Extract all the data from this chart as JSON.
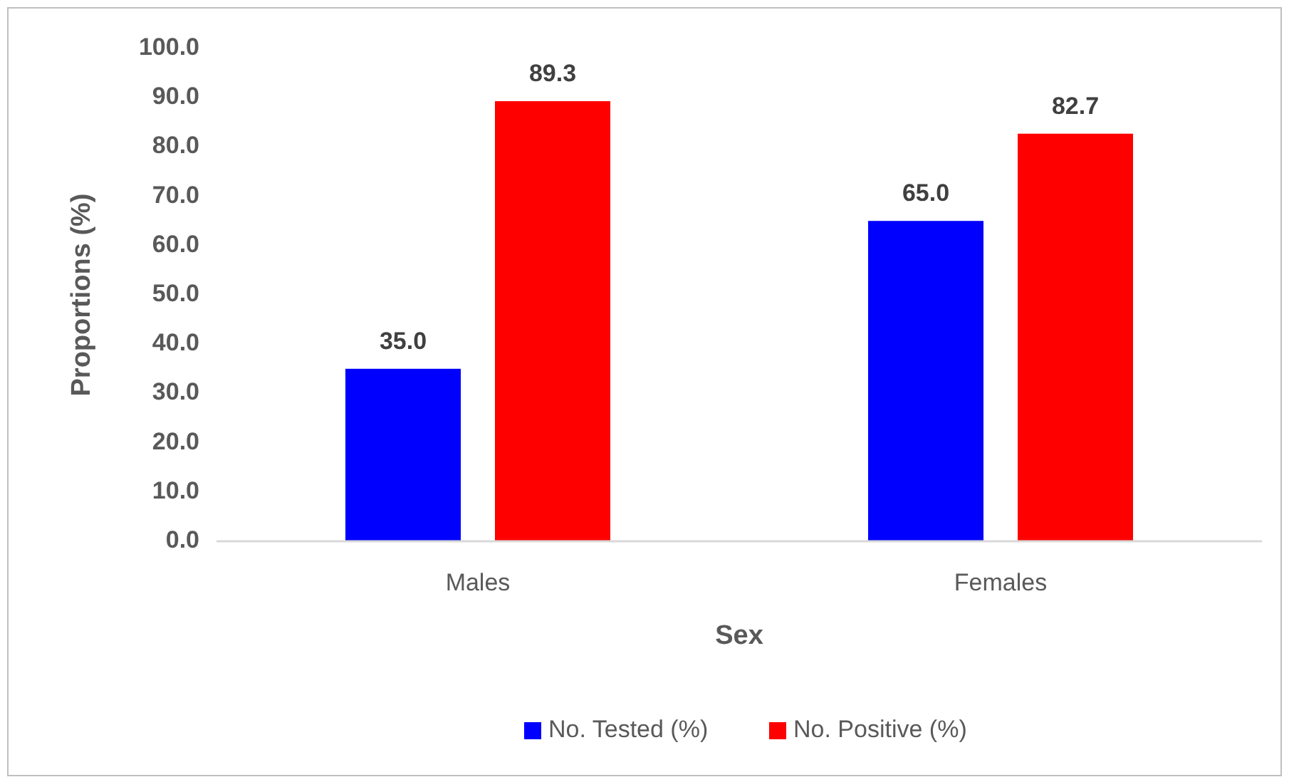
{
  "chart_data": {
    "type": "bar",
    "xlabel": "Sex",
    "ylabel": "Proportions (%)",
    "categories": [
      "Males",
      "Females"
    ],
    "series": [
      {
        "name": "No. Tested (%)",
        "color": "#0000ff",
        "values": [
          35.0,
          65.0
        ],
        "value_labels": [
          "35.0",
          "65.0"
        ]
      },
      {
        "name": "No. Positive (%)",
        "color": "#ff0000",
        "values": [
          89.3,
          82.7
        ],
        "value_labels": [
          "89.3",
          "82.7"
        ]
      }
    ],
    "ylim": [
      0,
      100
    ],
    "yticks": [
      {
        "value": 0,
        "label": "0.0"
      },
      {
        "value": 10,
        "label": "10.0"
      },
      {
        "value": 20,
        "label": "20.0"
      },
      {
        "value": 30,
        "label": "30.0"
      },
      {
        "value": 40,
        "label": "40.0"
      },
      {
        "value": 50,
        "label": "50.0"
      },
      {
        "value": 60,
        "label": "60.0"
      },
      {
        "value": 70,
        "label": "70.0"
      },
      {
        "value": 80,
        "label": "80.0"
      },
      {
        "value": 90,
        "label": "90.0"
      },
      {
        "value": 100,
        "label": "100.0"
      }
    ],
    "grid": false,
    "legend": "bottom"
  }
}
